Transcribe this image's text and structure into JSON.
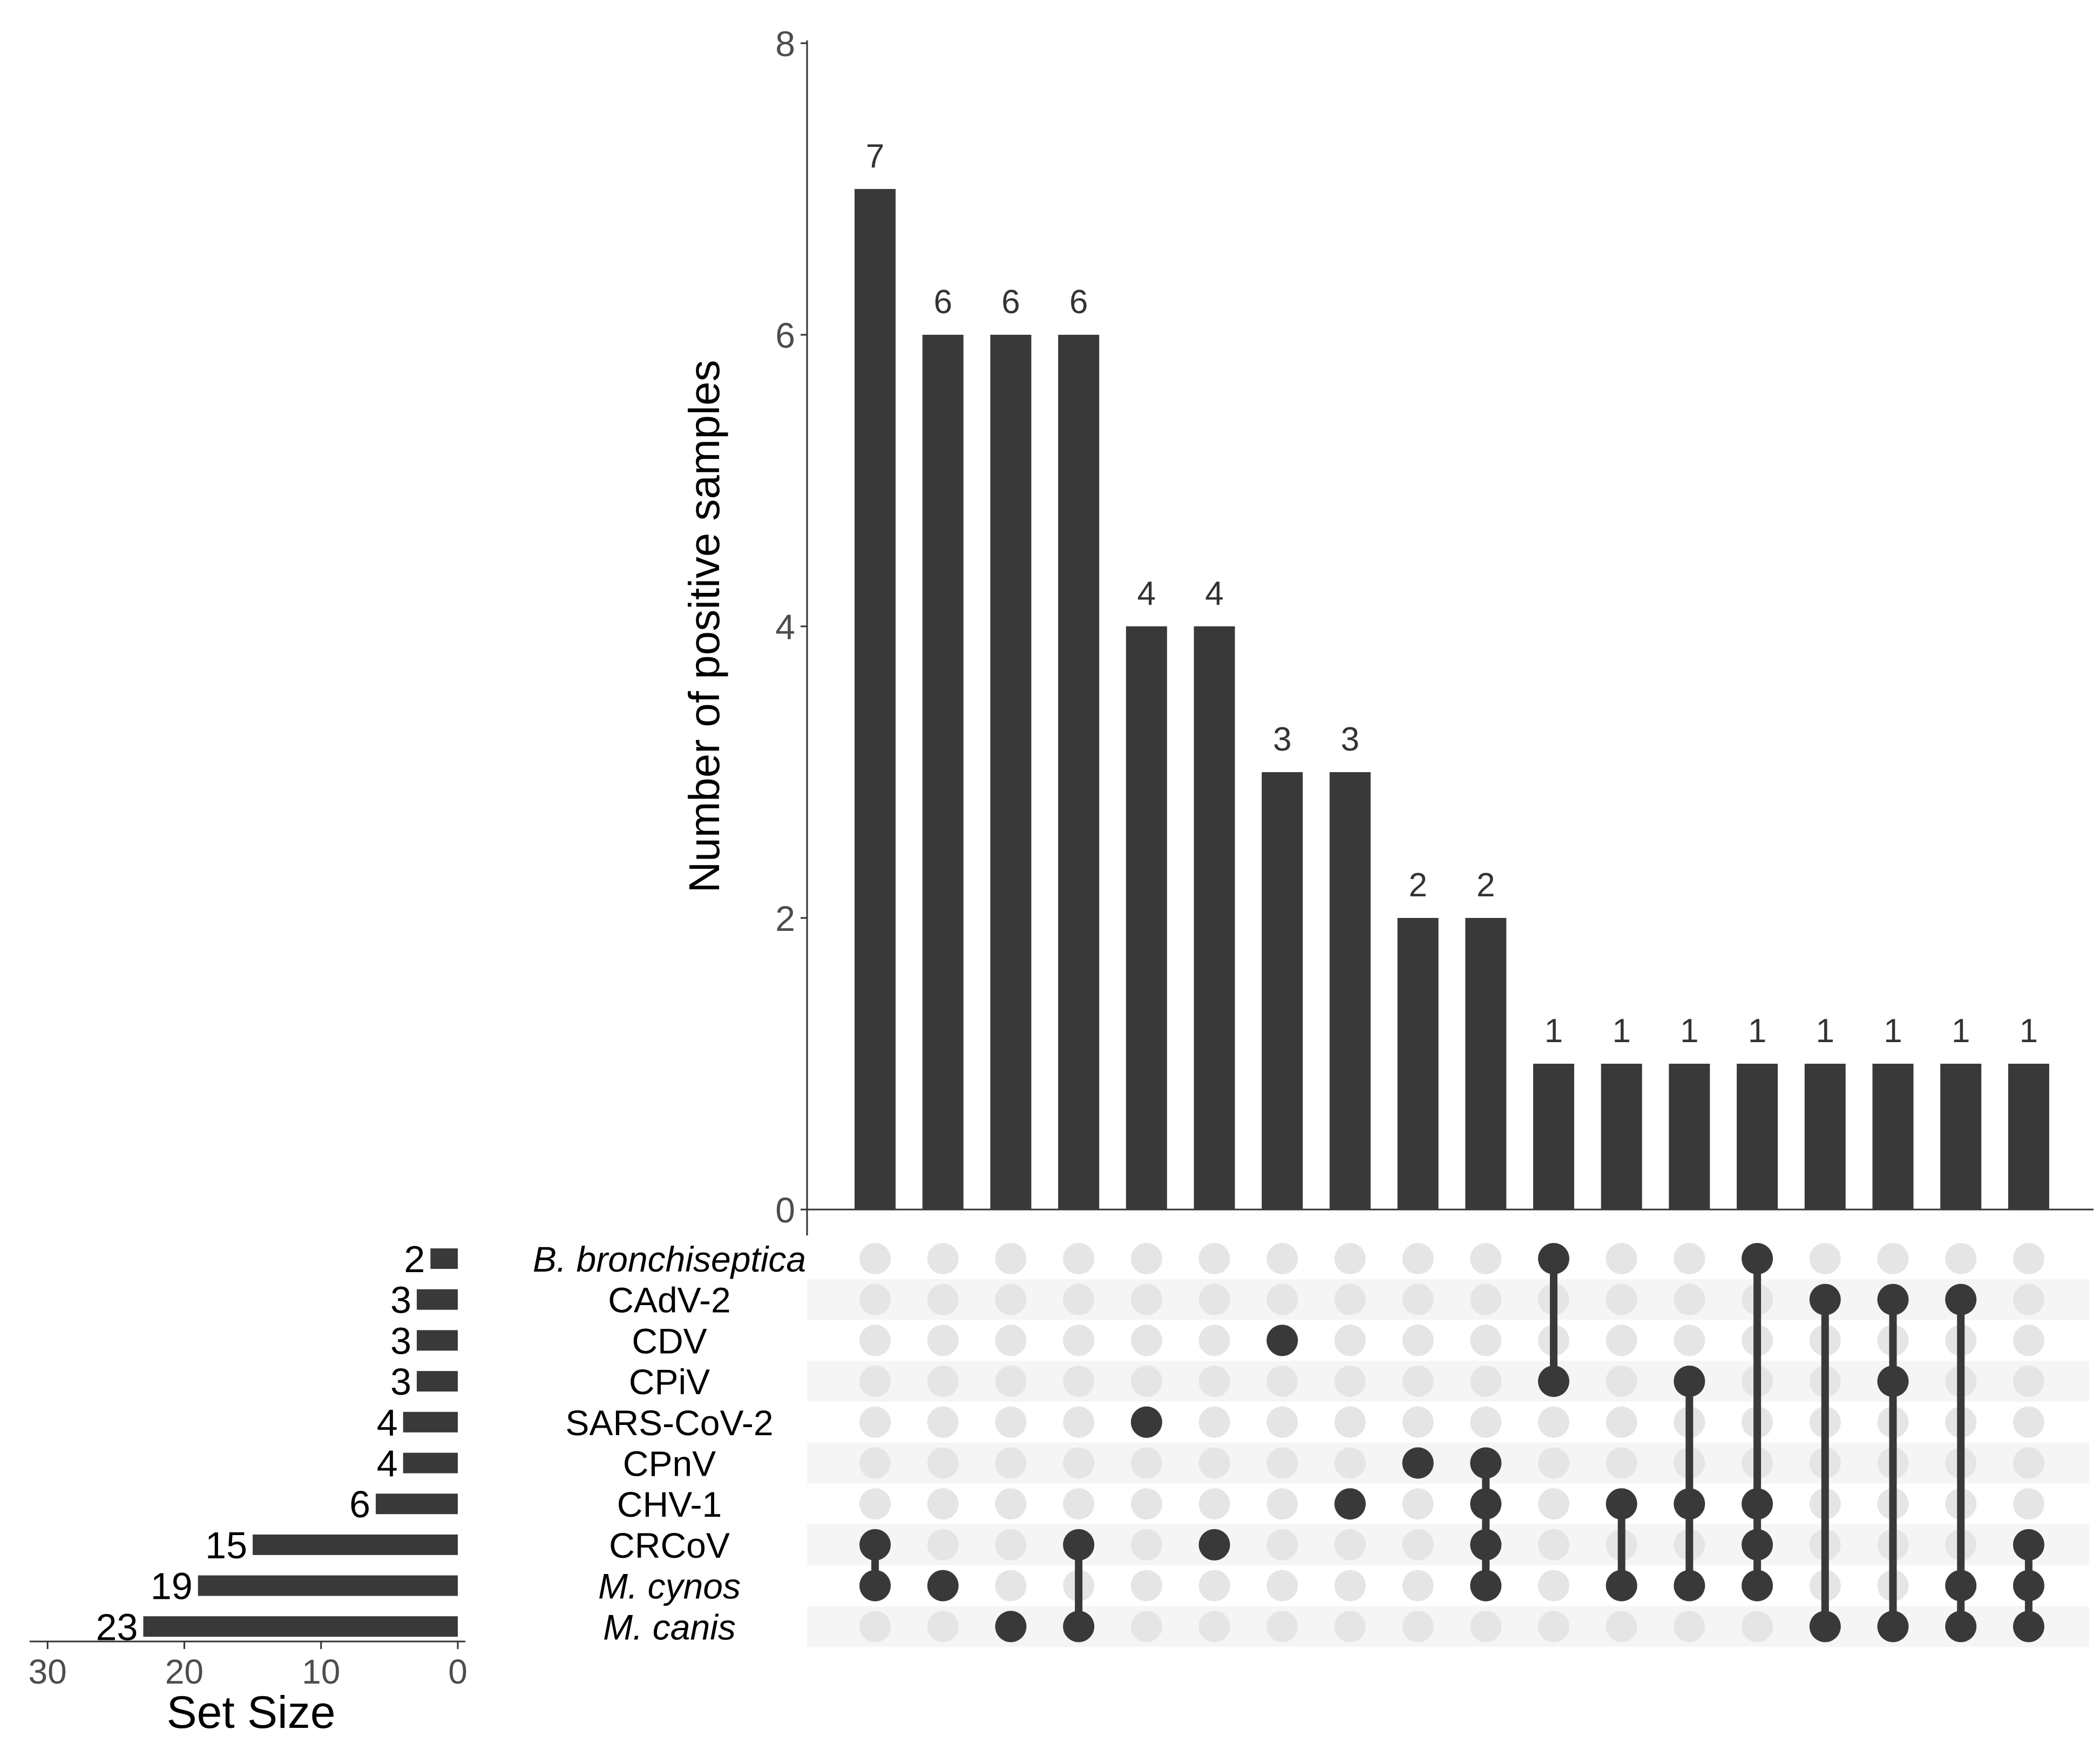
{
  "chart_data": {
    "type": "upset",
    "intersection_bars": {
      "ylabel": "Number of positive samples",
      "ylim": [
        0,
        8
      ],
      "yticks": [
        "0",
        "2",
        "4",
        "6",
        "8"
      ],
      "values": [
        7,
        6,
        6,
        6,
        4,
        4,
        3,
        3,
        2,
        2,
        1,
        1,
        1,
        1,
        1,
        1,
        1,
        1
      ],
      "labels": [
        "7",
        "6",
        "6",
        "6",
        "4",
        "4",
        "3",
        "3",
        "2",
        "2",
        "1",
        "1",
        "1",
        "1",
        "1",
        "1",
        "1",
        "1"
      ]
    },
    "sets": [
      {
        "name": "B. bronchiseptica",
        "size": 2,
        "size_label": "2",
        "italic": true
      },
      {
        "name": "CAdV-2",
        "size": 3,
        "size_label": "3",
        "italic": false
      },
      {
        "name": "CDV",
        "size": 3,
        "size_label": "3",
        "italic": false
      },
      {
        "name": "CPiV",
        "size": 3,
        "size_label": "3",
        "italic": false
      },
      {
        "name": "SARS-CoV-2",
        "size": 4,
        "size_label": "4",
        "italic": false
      },
      {
        "name": "CPnV",
        "size": 4,
        "size_label": "4",
        "italic": false
      },
      {
        "name": "CHV-1",
        "size": 6,
        "size_label": "6",
        "italic": false
      },
      {
        "name": "CRCoV",
        "size": 15,
        "size_label": "15",
        "italic": false
      },
      {
        "name": "M. cynos",
        "size": 19,
        "size_label": "19",
        "italic": true
      },
      {
        "name": "M. canis",
        "size": 23,
        "size_label": "23",
        "italic": true
      }
    ],
    "set_size_axis": {
      "xlabel": "Set Size",
      "xlim": [
        0,
        30
      ],
      "ticks": [
        30,
        20,
        10,
        0
      ],
      "tick_labels": [
        "30",
        "20",
        "10",
        "0"
      ]
    },
    "matrix": [
      [
        7,
        8
      ],
      [
        8
      ],
      [
        9
      ],
      [
        9,
        7
      ],
      [
        4
      ],
      [
        7
      ],
      [
        2
      ],
      [
        6
      ],
      [
        5
      ],
      [
        5,
        6,
        7,
        8
      ],
      [
        0,
        3
      ],
      [
        6,
        8
      ],
      [
        3,
        6,
        8
      ],
      [
        0,
        6,
        7,
        8
      ],
      [
        1,
        9
      ],
      [
        1,
        3,
        9
      ],
      [
        1,
        8,
        9
      ],
      [
        7,
        8,
        9
      ]
    ],
    "colors": {
      "bar": "#393939",
      "dot_active": "#393939",
      "dot_inactive": "#e5e5e5",
      "stripe": "#f5f5f5",
      "axis": "#333333",
      "tick_text": "#4d4d4d",
      "label_text": "#000000"
    }
  }
}
